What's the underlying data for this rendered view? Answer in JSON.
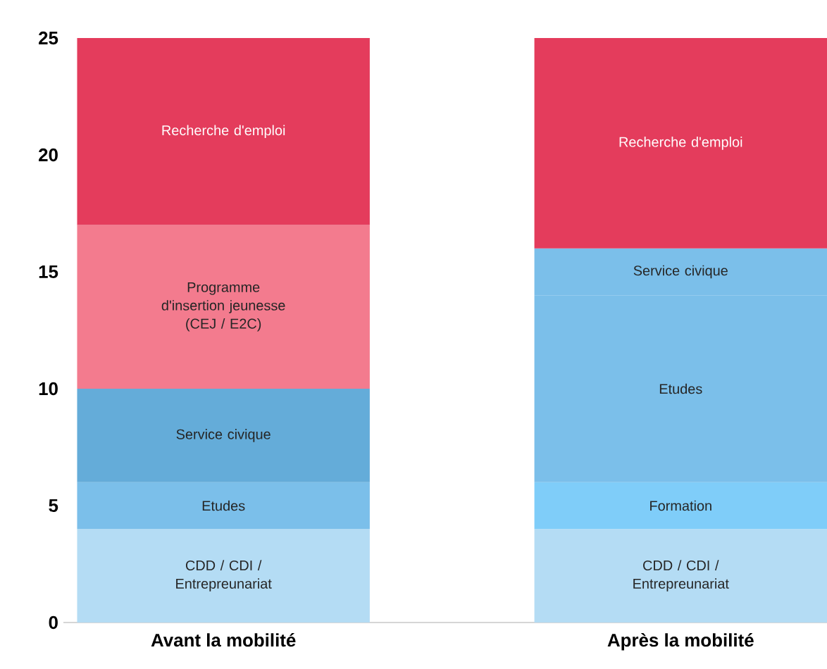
{
  "chart_data": {
    "type": "bar",
    "stacked": true,
    "categories": [
      "Avant la mobilité",
      "Après la mobilité"
    ],
    "series": [
      {
        "name": "CDD / CDI / Entrepreunariat",
        "colors": [
          "#b4dcf4",
          "#b4dcf4"
        ],
        "values": [
          4,
          4
        ]
      },
      {
        "name": "Formation",
        "colors": [
          "#7fcdf9",
          "#7fcdf9"
        ],
        "values": [
          null,
          2
        ]
      },
      {
        "name": "Etudes",
        "colors": [
          "#7bbfea",
          "#7bbfea"
        ],
        "values": [
          2,
          8
        ]
      },
      {
        "name": "Service civique",
        "colors": [
          "#64acd9",
          "#7bbfea"
        ],
        "values": [
          4,
          2
        ]
      },
      {
        "name": "Programme d'insertion jeunesse (CEJ / E2C)",
        "colors": [
          "#f37b8e",
          "#f37b8e"
        ],
        "values": [
          7,
          null
        ]
      },
      {
        "name": "Recherche d'emploi",
        "colors": [
          "#e43c5c",
          "#e43c5c"
        ],
        "values": [
          8,
          9
        ]
      }
    ],
    "ylim": [
      0,
      25
    ],
    "yticks": [
      0,
      5,
      10,
      15,
      20,
      25
    ],
    "grid": false
  }
}
